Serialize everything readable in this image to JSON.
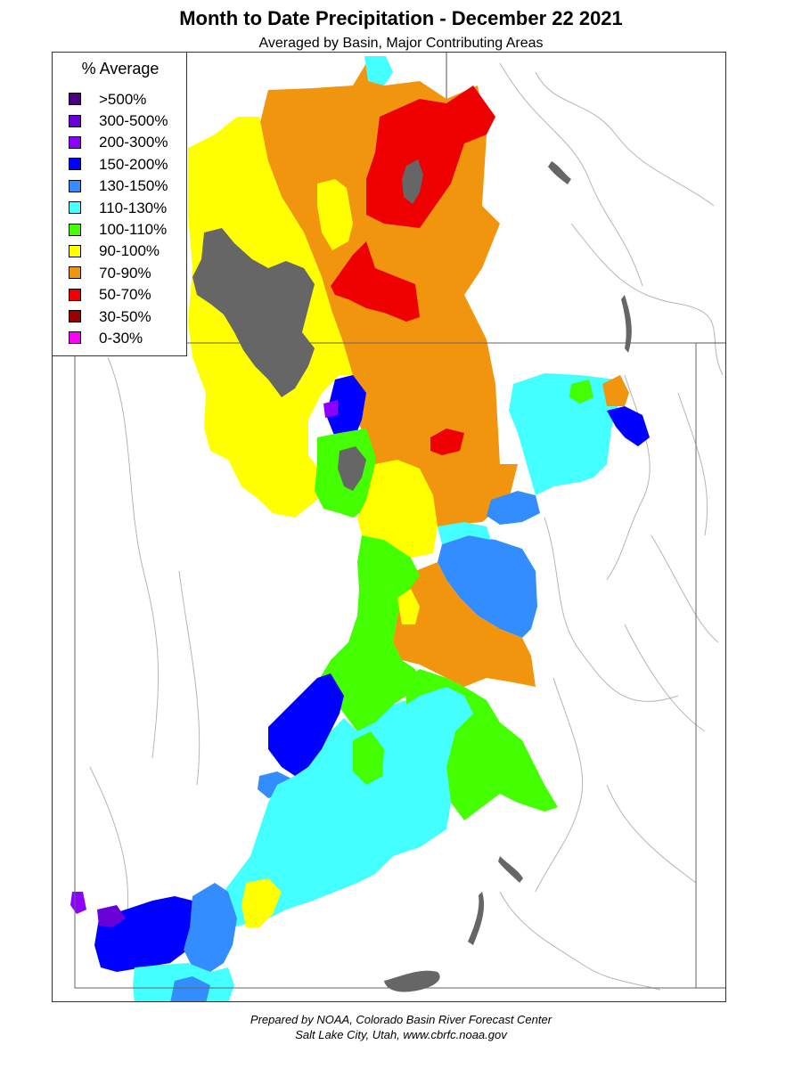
{
  "header": {
    "title": "Month to Date Precipitation - December 22 2021",
    "subtitle": "Averaged by Basin, Major Contributing Areas"
  },
  "legend": {
    "title": "% Average",
    "items": [
      {
        "label": ">500%",
        "color": "#4B0082"
      },
      {
        "label": "300-500%",
        "color": "#6A00D8"
      },
      {
        "label": "200-300%",
        "color": "#8C00FF"
      },
      {
        "label": "150-200%",
        "color": "#0000FF"
      },
      {
        "label": "130-150%",
        "color": "#338DFF"
      },
      {
        "label": "110-130%",
        "color": "#44FFFF"
      },
      {
        "label": "100-110%",
        "color": "#44FF00"
      },
      {
        "label": "90-100%",
        "color": "#FFFF00"
      },
      {
        "label": "70-90%",
        "color": "#F2950E"
      },
      {
        "label": "50-70%",
        "color": "#EE0000"
      },
      {
        "label": "30-50%",
        "color": "#990000"
      },
      {
        "label": "0-30%",
        "color": "#FF00FF"
      }
    ]
  },
  "colors": {
    "no_data": "#666666",
    "boundary": "#444444",
    "river": "#aaaaaa"
  },
  "footer": {
    "line1": "Prepared by NOAA, Colorado Basin River Forecast Center",
    "line2": "Salt Lake City, Utah, www.cbrfc.noaa.gov"
  }
}
